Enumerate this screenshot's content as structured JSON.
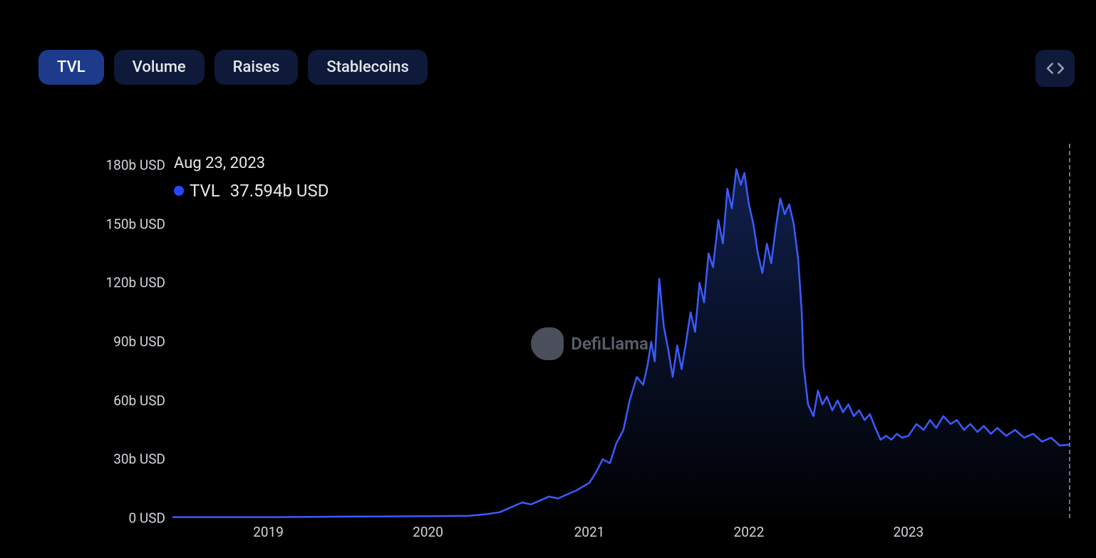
{
  "tabs": {
    "items": [
      {
        "label": "TVL",
        "active": true
      },
      {
        "label": "Volume",
        "active": false
      },
      {
        "label": "Raises",
        "active": false
      },
      {
        "label": "Stablecoins",
        "active": false
      }
    ]
  },
  "tooltip": {
    "date": "Aug 23, 2023",
    "series_name": "TVL",
    "value": "37.594b USD",
    "marker_color": "#2448ff"
  },
  "watermark": {
    "text": "DefiLlama"
  },
  "chart": {
    "type": "area",
    "line_color": "#3b5bff",
    "fill_top_color": "rgba(30,58,138,0.55)",
    "fill_bottom_color": "rgba(30,58,138,0.02)",
    "line_width": 2.5,
    "background_color": "#000000",
    "cursor_line_color": "#6b7280",
    "axis_label_color": "#d1d5db",
    "axis_label_fontsize": 19,
    "y": {
      "min": 0,
      "max": 180,
      "unit": "b USD",
      "ticks": [
        0,
        30,
        60,
        90,
        120,
        150,
        180
      ]
    },
    "x": {
      "t_min": 0,
      "t_max": 100,
      "ticks": [
        {
          "label": "2019",
          "t": 10.7
        },
        {
          "label": "2020",
          "t": 28.5
        },
        {
          "label": "2021",
          "t": 46.5
        },
        {
          "label": "2022",
          "t": 64.3
        },
        {
          "label": "2023",
          "t": 82.1
        }
      ],
      "cursor_t": 100
    },
    "series": [
      {
        "t": 0,
        "v": 0.5
      },
      {
        "t": 5,
        "v": 0.5
      },
      {
        "t": 10.7,
        "v": 0.5
      },
      {
        "t": 15,
        "v": 0.6
      },
      {
        "t": 20,
        "v": 0.8
      },
      {
        "t": 25,
        "v": 0.9
      },
      {
        "t": 28.5,
        "v": 1.0
      },
      {
        "t": 31,
        "v": 1.1
      },
      {
        "t": 33,
        "v": 1.2
      },
      {
        "t": 35,
        "v": 2.0
      },
      {
        "t": 36.5,
        "v": 3.0
      },
      {
        "t": 37.5,
        "v": 5.0
      },
      {
        "t": 39,
        "v": 8.0
      },
      {
        "t": 40,
        "v": 7.0
      },
      {
        "t": 41,
        "v": 9.0
      },
      {
        "t": 42,
        "v": 11.0
      },
      {
        "t": 43,
        "v": 10.0
      },
      {
        "t": 44,
        "v": 12.0
      },
      {
        "t": 45,
        "v": 14.0
      },
      {
        "t": 46.5,
        "v": 18.0
      },
      {
        "t": 47.2,
        "v": 23.0
      },
      {
        "t": 48,
        "v": 30.0
      },
      {
        "t": 48.8,
        "v": 28.0
      },
      {
        "t": 49.5,
        "v": 38.0
      },
      {
        "t": 50.3,
        "v": 45.0
      },
      {
        "t": 51,
        "v": 60.0
      },
      {
        "t": 51.8,
        "v": 72.0
      },
      {
        "t": 52.5,
        "v": 68.0
      },
      {
        "t": 53,
        "v": 78.0
      },
      {
        "t": 53.4,
        "v": 90.0
      },
      {
        "t": 53.8,
        "v": 80.0
      },
      {
        "t": 54.3,
        "v": 122.0
      },
      {
        "t": 54.8,
        "v": 98.0
      },
      {
        "t": 55.3,
        "v": 86.0
      },
      {
        "t": 55.8,
        "v": 72.0
      },
      {
        "t": 56.3,
        "v": 88.0
      },
      {
        "t": 56.8,
        "v": 76.0
      },
      {
        "t": 57.3,
        "v": 90.0
      },
      {
        "t": 57.8,
        "v": 105.0
      },
      {
        "t": 58.3,
        "v": 95.0
      },
      {
        "t": 58.8,
        "v": 120.0
      },
      {
        "t": 59.3,
        "v": 110.0
      },
      {
        "t": 59.8,
        "v": 135.0
      },
      {
        "t": 60.3,
        "v": 128.0
      },
      {
        "t": 60.9,
        "v": 152.0
      },
      {
        "t": 61.4,
        "v": 140.0
      },
      {
        "t": 61.9,
        "v": 168.0
      },
      {
        "t": 62.4,
        "v": 158.0
      },
      {
        "t": 62.9,
        "v": 178.0
      },
      {
        "t": 63.4,
        "v": 170.0
      },
      {
        "t": 63.8,
        "v": 176.0
      },
      {
        "t": 64.3,
        "v": 160.0
      },
      {
        "t": 64.8,
        "v": 150.0
      },
      {
        "t": 65.3,
        "v": 135.0
      },
      {
        "t": 65.8,
        "v": 125.0
      },
      {
        "t": 66.3,
        "v": 140.0
      },
      {
        "t": 66.8,
        "v": 130.0
      },
      {
        "t": 67.3,
        "v": 148.0
      },
      {
        "t": 67.8,
        "v": 163.0
      },
      {
        "t": 68.3,
        "v": 155.0
      },
      {
        "t": 68.8,
        "v": 160.0
      },
      {
        "t": 69.3,
        "v": 150.0
      },
      {
        "t": 69.8,
        "v": 132.0
      },
      {
        "t": 70.2,
        "v": 105.0
      },
      {
        "t": 70.4,
        "v": 78.0
      },
      {
        "t": 70.9,
        "v": 58.0
      },
      {
        "t": 71.5,
        "v": 52.0
      },
      {
        "t": 72.0,
        "v": 65.0
      },
      {
        "t": 72.5,
        "v": 58.0
      },
      {
        "t": 73.0,
        "v": 62.0
      },
      {
        "t": 73.6,
        "v": 55.0
      },
      {
        "t": 74.2,
        "v": 60.0
      },
      {
        "t": 74.8,
        "v": 54.0
      },
      {
        "t": 75.4,
        "v": 58.0
      },
      {
        "t": 76.0,
        "v": 52.0
      },
      {
        "t": 76.6,
        "v": 55.0
      },
      {
        "t": 77.2,
        "v": 50.0
      },
      {
        "t": 77.8,
        "v": 53.0
      },
      {
        "t": 78.4,
        "v": 46.0
      },
      {
        "t": 79.0,
        "v": 40.0
      },
      {
        "t": 79.6,
        "v": 42.0
      },
      {
        "t": 80.2,
        "v": 40.0
      },
      {
        "t": 80.8,
        "v": 43.0
      },
      {
        "t": 81.4,
        "v": 41.0
      },
      {
        "t": 82.1,
        "v": 42.0
      },
      {
        "t": 83.0,
        "v": 48.0
      },
      {
        "t": 83.8,
        "v": 45.0
      },
      {
        "t": 84.5,
        "v": 50.0
      },
      {
        "t": 85.2,
        "v": 46.0
      },
      {
        "t": 86.0,
        "v": 52.0
      },
      {
        "t": 86.8,
        "v": 48.0
      },
      {
        "t": 87.5,
        "v": 50.0
      },
      {
        "t": 88.3,
        "v": 45.0
      },
      {
        "t": 89.0,
        "v": 48.0
      },
      {
        "t": 89.8,
        "v": 44.0
      },
      {
        "t": 90.5,
        "v": 47.0
      },
      {
        "t": 91.3,
        "v": 43.0
      },
      {
        "t": 92.0,
        "v": 46.0
      },
      {
        "t": 93.0,
        "v": 42.0
      },
      {
        "t": 94.0,
        "v": 45.0
      },
      {
        "t": 95.0,
        "v": 41.0
      },
      {
        "t": 96.0,
        "v": 43.0
      },
      {
        "t": 97.0,
        "v": 39.0
      },
      {
        "t": 98.0,
        "v": 41.0
      },
      {
        "t": 99.0,
        "v": 37.0
      },
      {
        "t": 100,
        "v": 37.5
      }
    ]
  }
}
